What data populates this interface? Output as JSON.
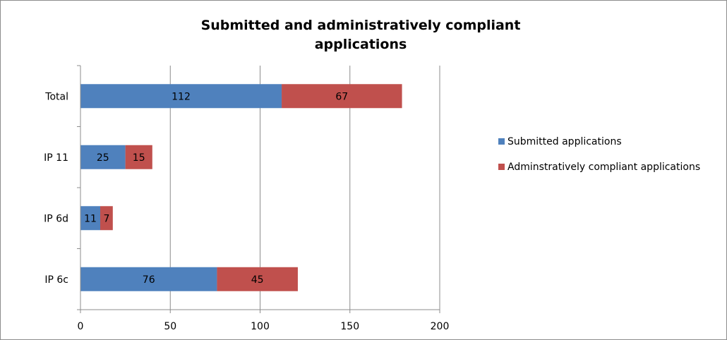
{
  "chart_data": {
    "type": "bar",
    "orientation": "horizontal",
    "stacked": true,
    "title": "Submitted and administratively compliant applications",
    "title_lines": [
      "Submitted and administratively compliant",
      "applications"
    ],
    "categories": [
      "Total",
      "IP 11",
      "IP 6d",
      "IP 6c"
    ],
    "series": [
      {
        "name": "Submitted applications",
        "color": "#4f81bd",
        "values": [
          112,
          25,
          11,
          76
        ]
      },
      {
        "name": "Adminstratively compliant applications",
        "color": "#c0504d",
        "values": [
          67,
          15,
          7,
          45
        ]
      }
    ],
    "xlim": [
      0,
      200
    ],
    "xticks": [
      0,
      50,
      100,
      150,
      200
    ],
    "grid": true,
    "legend_position": "right",
    "data_labels": true
  }
}
